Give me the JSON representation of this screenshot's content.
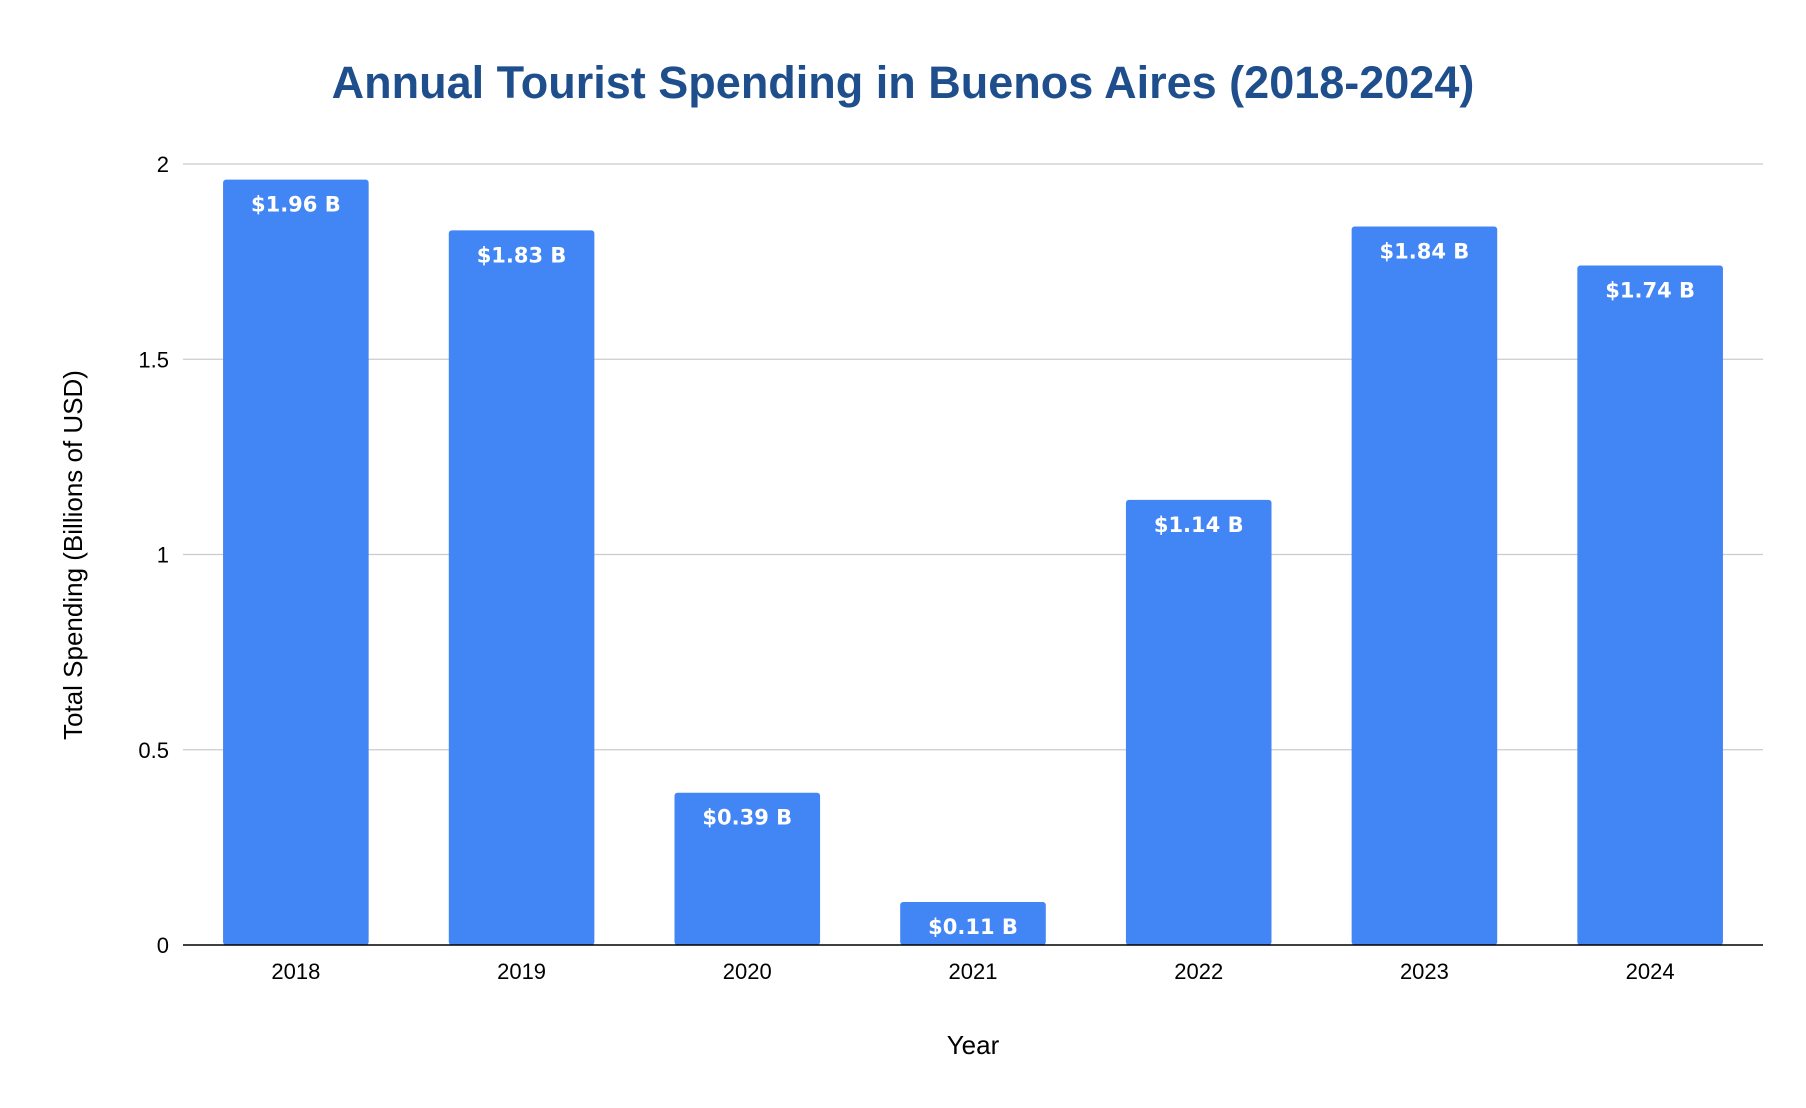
{
  "chart_data": {
    "type": "bar",
    "title": "Annual Tourist Spending in Buenos Aires (2018-2024)",
    "xlabel": "Year",
    "ylabel": "Total Spending (Billions of USD)",
    "categories": [
      "2018",
      "2019",
      "2020",
      "2021",
      "2022",
      "2023",
      "2024"
    ],
    "values": [
      1.96,
      1.83,
      0.39,
      0.11,
      1.14,
      1.84,
      1.74
    ],
    "data_labels": [
      "$1.96 B",
      "$1.83 B",
      "$0.39 B",
      "$0.11 B",
      "$1.14 B",
      "$1.84 B",
      "$1.74 B"
    ],
    "ylim": [
      0,
      2
    ],
    "yticks": [
      "0",
      "0.5",
      "1",
      "1.5",
      "2"
    ],
    "grid": true,
    "legend": "none",
    "bar_color": "#4285f4",
    "title_color": "#1f4e8c"
  }
}
